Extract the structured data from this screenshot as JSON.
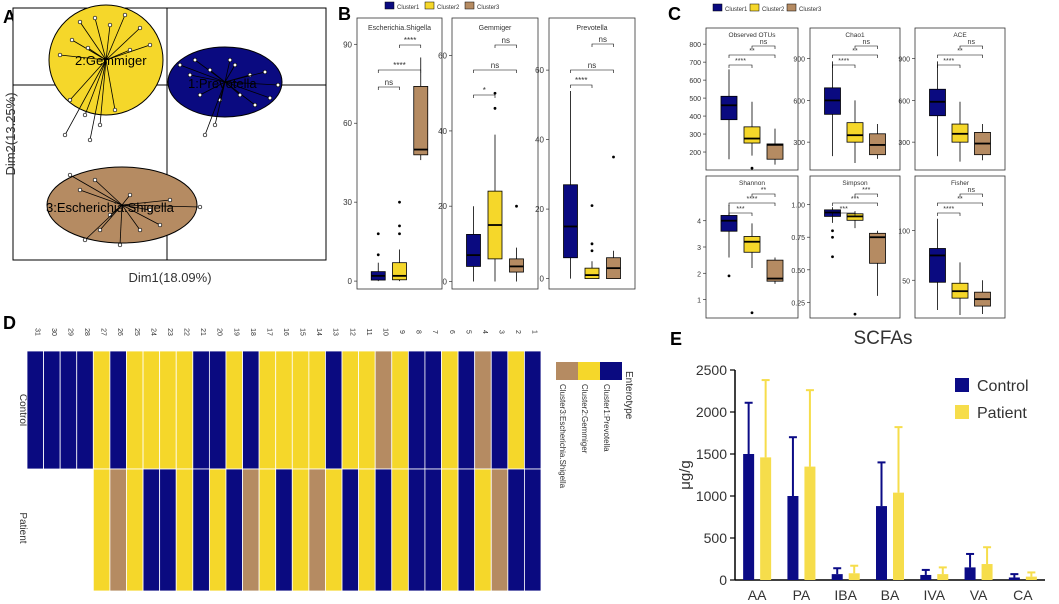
{
  "colors": {
    "cluster1": "#0a0a80",
    "cluster2": "#f5d72a",
    "cluster3": "#b58b62",
    "control": "#0b0b86",
    "patient": "#f6dd4b"
  },
  "labels": {
    "A": "A",
    "B": "B",
    "C": "C",
    "D": "D",
    "E": "E"
  },
  "chart_data": [
    {
      "id": "A",
      "type": "scatter",
      "title": "PCoA enterotypes",
      "xlabel": "Dim1(18.09%)",
      "ylabel": "Dim2(13.25%)",
      "clusters": [
        {
          "name": "2:Gemmiger",
          "color": "cluster2"
        },
        {
          "name": "1:Prevotella",
          "color": "cluster1"
        },
        {
          "name": "3:Escherichia.Shigella",
          "color": "cluster3"
        }
      ]
    },
    {
      "id": "B",
      "type": "box",
      "legend": [
        "Cluster1",
        "Cluster2",
        "Cluster3"
      ],
      "panels": [
        {
          "title": "Escherichia.Shigella",
          "ylim": [
            -3,
            100
          ],
          "ticks": [
            0,
            30,
            60,
            90
          ],
          "boxes": [
            {
              "q1": 0.4,
              "med": 2,
              "q3": 3.6,
              "wl": 0,
              "wh": 7,
              "out": [
                10,
                18
              ]
            },
            {
              "q1": 0.5,
              "med": 2,
              "q3": 7,
              "wl": 0,
              "wh": 12,
              "out": [
                18,
                21,
                30
              ]
            },
            {
              "q1": 48,
              "med": 50,
              "q3": 74,
              "wl": 46,
              "wh": 85,
              "out": []
            }
          ],
          "sig": [
            {
              "a": 0,
              "b": 1,
              "l": "ns"
            },
            {
              "a": 0,
              "b": 2,
              "l": "****"
            },
            {
              "a": 1,
              "b": 2,
              "l": "****"
            }
          ]
        },
        {
          "title": "Gemmiger",
          "ylim": [
            -2,
            70
          ],
          "ticks": [
            0,
            20,
            40,
            60
          ],
          "boxes": [
            {
              "q1": 4,
              "med": 7,
              "q3": 12.5,
              "wl": 0,
              "wh": 20,
              "out": []
            },
            {
              "q1": 6,
              "med": 15,
              "q3": 24,
              "wl": 0,
              "wh": 39,
              "out": [
                46,
                50
              ]
            },
            {
              "q1": 2.5,
              "med": 4,
              "q3": 6,
              "wl": 0,
              "wh": 9,
              "out": [
                20
              ]
            }
          ],
          "sig": [
            {
              "a": 0,
              "b": 1,
              "l": "*"
            },
            {
              "a": 0,
              "b": 2,
              "l": "ns"
            },
            {
              "a": 1,
              "b": 2,
              "l": "ns"
            }
          ]
        },
        {
          "title": "Prevotella",
          "ylim": [
            -3,
            75
          ],
          "ticks": [
            0,
            20,
            40,
            60
          ],
          "boxes": [
            {
              "q1": 6,
              "med": 15,
              "q3": 27,
              "wl": 0,
              "wh": 54,
              "out": []
            },
            {
              "q1": 0,
              "med": 1,
              "q3": 3,
              "wl": 0,
              "wh": 5,
              "out": [
                8,
                10,
                21
              ]
            },
            {
              "q1": 0,
              "med": 3,
              "q3": 6,
              "wl": 0,
              "wh": 8,
              "out": [
                35
              ]
            }
          ],
          "sig": [
            {
              "a": 0,
              "b": 1,
              "l": "****"
            },
            {
              "a": 0,
              "b": 2,
              "l": "ns"
            },
            {
              "a": 1,
              "b": 2,
              "l": "ns"
            }
          ]
        }
      ]
    },
    {
      "id": "C",
      "type": "box",
      "legend": [
        "Cluster1",
        "Cluster2",
        "Cluster3"
      ],
      "panels": [
        {
          "title": "Observed OTUs",
          "ylim": [
            100,
            890
          ],
          "ticks": [
            200,
            300,
            400,
            500,
            600,
            700,
            800
          ],
          "boxes": [
            {
              "q1": 380,
              "med": 460,
              "q3": 510,
              "wl": 160,
              "wh": 660,
              "out": []
            },
            {
              "q1": 250,
              "med": 275,
              "q3": 340,
              "wl": 180,
              "wh": 480,
              "out": [
                110
              ]
            },
            {
              "q1": 160,
              "med": 240,
              "q3": 245,
              "wl": 130,
              "wh": 330,
              "out": []
            }
          ],
          "sig": [
            {
              "a": 0,
              "b": 1,
              "l": "****"
            },
            {
              "a": 0,
              "b": 2,
              "l": "**"
            },
            {
              "a": 1,
              "b": 2,
              "l": "ns"
            }
          ]
        },
        {
          "title": "Chao1",
          "ylim": [
            100,
            1120
          ],
          "ticks": [
            300,
            600,
            900
          ],
          "boxes": [
            {
              "q1": 500,
              "med": 600,
              "q3": 690,
              "wl": 200,
              "wh": 880,
              "out": []
            },
            {
              "q1": 300,
              "med": 350,
              "q3": 440,
              "wl": 150,
              "wh": 600,
              "out": []
            },
            {
              "q1": 210,
              "med": 280,
              "q3": 360,
              "wl": 180,
              "wh": 430,
              "out": []
            }
          ],
          "sig": [
            {
              "a": 0,
              "b": 1,
              "l": "****"
            },
            {
              "a": 0,
              "b": 2,
              "l": "**"
            },
            {
              "a": 1,
              "b": 2,
              "l": "ns"
            }
          ]
        },
        {
          "title": "ACE",
          "ylim": [
            100,
            1120
          ],
          "ticks": [
            300,
            600,
            900
          ],
          "boxes": [
            {
              "q1": 490,
              "med": 590,
              "q3": 680,
              "wl": 200,
              "wh": 880,
              "out": []
            },
            {
              "q1": 300,
              "med": 360,
              "q3": 430,
              "wl": 160,
              "wh": 590,
              "out": []
            },
            {
              "q1": 210,
              "med": 290,
              "q3": 370,
              "wl": 170,
              "wh": 430,
              "out": []
            }
          ],
          "sig": [
            {
              "a": 0,
              "b": 1,
              "l": "****"
            },
            {
              "a": 0,
              "b": 2,
              "l": "**"
            },
            {
              "a": 1,
              "b": 2,
              "l": "ns"
            }
          ]
        },
        {
          "title": "Shannon",
          "ylim": [
            0.3,
            5.7
          ],
          "ticks": [
            1,
            2,
            3,
            4
          ],
          "boxes": [
            {
              "q1": 3.6,
              "med": 4.0,
              "q3": 4.2,
              "wl": 2.6,
              "wh": 4.6,
              "out": [
                1.9
              ]
            },
            {
              "q1": 2.8,
              "med": 3.2,
              "q3": 3.4,
              "wl": 2.2,
              "wh": 3.9,
              "out": [
                0.5
              ]
            },
            {
              "q1": 1.7,
              "med": 1.8,
              "q3": 2.5,
              "wl": 1.6,
              "wh": 2.6,
              "out": []
            }
          ],
          "sig": [
            {
              "a": 0,
              "b": 1,
              "l": "***"
            },
            {
              "a": 0,
              "b": 2,
              "l": "****"
            },
            {
              "a": 1,
              "b": 2,
              "l": "**"
            }
          ]
        },
        {
          "title": "Simpson",
          "ylim": [
            0.13,
            1.22
          ],
          "ticks": [
            0.25,
            0.5,
            0.75,
            1.0
          ],
          "tick_labels": [
            "0.25",
            "0.50",
            "0.75",
            "1.00"
          ],
          "boxes": [
            {
              "q1": 0.91,
              "med": 0.94,
              "q3": 0.96,
              "wl": 0.86,
              "wh": 0.98,
              "out": [
                0.8,
                0.75,
                0.6
              ]
            },
            {
              "q1": 0.88,
              "med": 0.91,
              "q3": 0.93,
              "wl": 0.82,
              "wh": 0.95,
              "out": [
                0.16
              ]
            },
            {
              "q1": 0.55,
              "med": 0.75,
              "q3": 0.78,
              "wl": 0.3,
              "wh": 0.8,
              "out": []
            }
          ],
          "sig": [
            {
              "a": 0,
              "b": 1,
              "l": "***"
            },
            {
              "a": 0,
              "b": 2,
              "l": "***"
            },
            {
              "a": 1,
              "b": 2,
              "l": "***"
            }
          ]
        },
        {
          "title": "Fisher",
          "ylim": [
            12,
            155
          ],
          "ticks": [
            50,
            100
          ],
          "boxes": [
            {
              "q1": 48,
              "med": 75,
              "q3": 82,
              "wl": 20,
              "wh": 112,
              "out": []
            },
            {
              "q1": 32,
              "med": 39,
              "q3": 47,
              "wl": 15,
              "wh": 68,
              "out": []
            },
            {
              "q1": 24,
              "med": 31,
              "q3": 38,
              "wl": 16,
              "wh": 50,
              "out": []
            }
          ],
          "sig": [
            {
              "a": 0,
              "b": 1,
              "l": "****"
            },
            {
              "a": 0,
              "b": 2,
              "l": "**"
            },
            {
              "a": 1,
              "b": 2,
              "l": "ns"
            }
          ]
        }
      ]
    },
    {
      "id": "D",
      "type": "heatmap",
      "columns": [
        "31",
        "30",
        "29",
        "28",
        "27",
        "26",
        "25",
        "24",
        "23",
        "22",
        "21",
        "20",
        "19",
        "18",
        "17",
        "16",
        "15",
        "14",
        "13",
        "12",
        "11",
        "10",
        "9",
        "8",
        "7",
        "6",
        "5",
        "4",
        "3",
        "2",
        "1"
      ],
      "rows": [
        "Control",
        "Patient"
      ],
      "control": [
        1,
        1,
        1,
        1,
        2,
        1,
        2,
        2,
        2,
        2,
        1,
        1,
        2,
        1,
        2,
        2,
        2,
        2,
        1,
        2,
        2,
        3,
        2,
        1,
        1,
        2,
        1,
        3,
        1,
        2,
        1
      ],
      "patient": [
        null,
        null,
        null,
        null,
        2,
        3,
        2,
        1,
        1,
        2,
        1,
        2,
        1,
        3,
        2,
        1,
        2,
        3,
        2,
        1,
        2,
        1,
        2,
        1,
        1,
        2,
        1,
        2,
        3,
        1,
        1
      ],
      "legend_title": "Enterotype",
      "legend": [
        "Cluster1:Prevotella",
        "Cluster2:Gemmiger",
        "Cluster3:Escherichia.Shigella"
      ]
    },
    {
      "id": "E",
      "type": "bar",
      "title": "SCFAs",
      "ylabel": "μg/g",
      "categories": [
        "AA",
        "PA",
        "IBA",
        "BA",
        "IVA",
        "VA",
        "CA"
      ],
      "ylim": [
        0,
        2500
      ],
      "yticks": [
        0,
        500,
        1000,
        1500,
        2000,
        2500
      ],
      "series": [
        {
          "name": "Control",
          "values": [
            1500,
            1000,
            70,
            880,
            60,
            150,
            30
          ],
          "err": [
            610,
            700,
            70,
            520,
            60,
            160,
            40
          ]
        },
        {
          "name": "Patient",
          "values": [
            1460,
            1350,
            80,
            1040,
            70,
            190,
            40
          ],
          "err": [
            920,
            910,
            90,
            780,
            80,
            200,
            50
          ]
        }
      ]
    }
  ]
}
